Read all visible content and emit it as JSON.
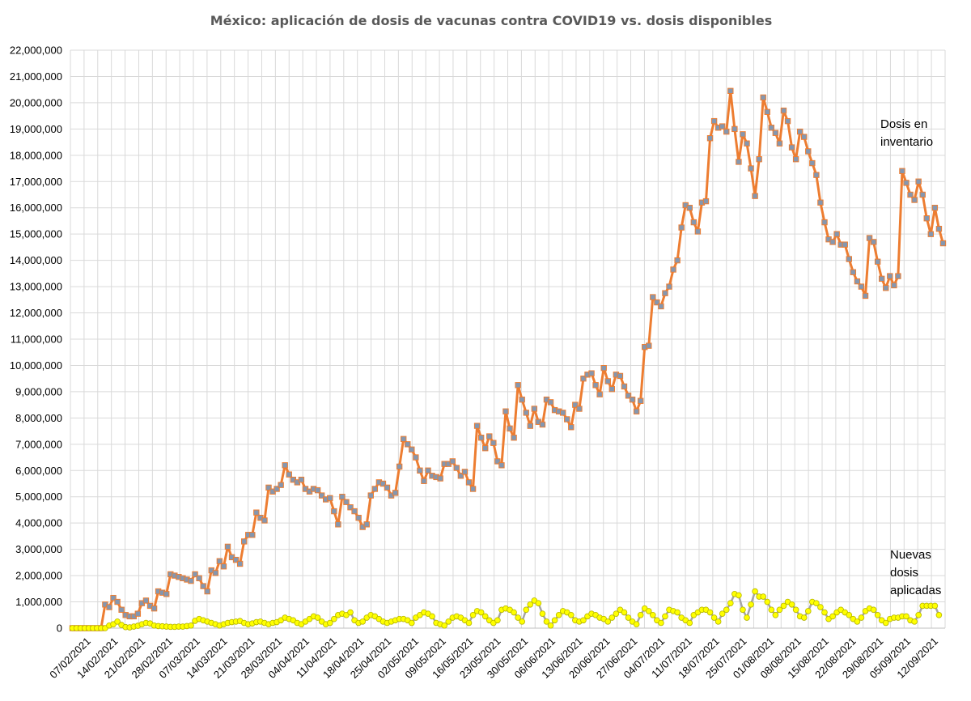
{
  "chart_data": {
    "type": "line",
    "title": "México: aplicación de dosis de vacunas contra COVID19 vs. dosis disponibles",
    "xlabel": "",
    "ylabel": "",
    "ylim": [
      0,
      22000000
    ],
    "y_ticks": [
      "0",
      "1,000,000",
      "2,000,000",
      "3,000,000",
      "4,000,000",
      "5,000,000",
      "6,000,000",
      "7,000,000",
      "8,000,000",
      "9,000,000",
      "10,000,000",
      "11,000,000",
      "12,000,000",
      "13,000,000",
      "14,000,000",
      "15,000,000",
      "16,000,000",
      "17,000,000",
      "18,000,000",
      "19,000,000",
      "20,000,000",
      "21,000,000",
      "22,000,000"
    ],
    "x_ticks": [
      "07/02/2021",
      "14/02/2021",
      "21/02/2021",
      "28/02/2021",
      "07/03/2021",
      "14/03/2021",
      "21/03/2021",
      "28/03/2021",
      "04/04/2021",
      "11/04/2021",
      "18/04/2021",
      "25/04/2021",
      "02/05/2021",
      "09/05/2021",
      "16/05/2021",
      "23/05/2021",
      "30/05/2021",
      "06/06/2021",
      "13/06/2021",
      "20/06/2021",
      "27/06/2021",
      "04/07/2021",
      "11/07/2021",
      "18/07/2021",
      "25/07/2021",
      "01/08/2021",
      "08/08/2021",
      "15/08/2021",
      "22/08/2021",
      "29/08/2021",
      "05/09/2021",
      "12/09/2021"
    ],
    "grid": true,
    "series": [
      {
        "name": "Dosis en inventario",
        "color": "#ED7D31",
        "marker_color": "#8497B0",
        "values": [
          0,
          0,
          0,
          0,
          0,
          0,
          0,
          0,
          900000,
          800000,
          1150000,
          1000000,
          700000,
          500000,
          450000,
          450000,
          550000,
          950000,
          1050000,
          850000,
          750000,
          1400000,
          1350000,
          1300000,
          2050000,
          2000000,
          1950000,
          1900000,
          1850000,
          1800000,
          2050000,
          1900000,
          1600000,
          1400000,
          2200000,
          2100000,
          2550000,
          2350000,
          3100000,
          2700000,
          2600000,
          2450000,
          3300000,
          3550000,
          3550000,
          4400000,
          4200000,
          4100000,
          5350000,
          5200000,
          5300000,
          5450000,
          6200000,
          5850000,
          5650000,
          5550000,
          5650000,
          5300000,
          5200000,
          5300000,
          5250000,
          5050000,
          4900000,
          4950000,
          4450000,
          3950000,
          5000000,
          4800000,
          4600000,
          4450000,
          4200000,
          3850000,
          3950000,
          5050000,
          5300000,
          5550000,
          5500000,
          5350000,
          5050000,
          5150000,
          6150000,
          7200000,
          7000000,
          6800000,
          6500000,
          6000000,
          5600000,
          6000000,
          5800000,
          5750000,
          5700000,
          6250000,
          6250000,
          6350000,
          6100000,
          5800000,
          5950000,
          5550000,
          5300000,
          7700000,
          7250000,
          6850000,
          7300000,
          7050000,
          6350000,
          6200000,
          8250000,
          7600000,
          7250000,
          9250000,
          8700000,
          8200000,
          7700000,
          8350000,
          7850000,
          7750000,
          8700000,
          8600000,
          8300000,
          8250000,
          8200000,
          7950000,
          7650000,
          8500000,
          8350000,
          9500000,
          9650000,
          9700000,
          9250000,
          8900000,
          9900000,
          9400000,
          9100000,
          9650000,
          9600000,
          9200000,
          8850000,
          8700000,
          8250000,
          8650000,
          10700000,
          10750000,
          12600000,
          12400000,
          12250000,
          12750000,
          13000000,
          13650000,
          14000000,
          15250000,
          16100000,
          16000000,
          15450000,
          15100000,
          16200000,
          16250000,
          18650000,
          19300000,
          19050000,
          19100000,
          18900000,
          20450000,
          19000000,
          17750000,
          18800000,
          18450000,
          17500000,
          16450000,
          17850000,
          20200000,
          19650000,
          19050000,
          18850000,
          18450000,
          19700000,
          19300000,
          18300000,
          17850000,
          18900000,
          18700000,
          18150000,
          17700000,
          17250000,
          16200000,
          15450000,
          14800000,
          14700000,
          15000000,
          14600000,
          14600000,
          14050000,
          13550000,
          13200000,
          13000000,
          12650000,
          14850000,
          14700000,
          13950000,
          13300000,
          12950000,
          13400000,
          13050000,
          13400000,
          17400000,
          16950000,
          16500000,
          16300000,
          17000000,
          16500000,
          15600000,
          15000000,
          16000000,
          15200000,
          14650000
        ]
      },
      {
        "name": "Nuevas dosis aplicadas",
        "color": "#A5A5A5",
        "marker_color": "#FFFF00",
        "values": [
          0,
          0,
          0,
          0,
          0,
          0,
          0,
          0,
          0,
          100000,
          150000,
          250000,
          120000,
          40000,
          30000,
          60000,
          90000,
          150000,
          200000,
          180000,
          100000,
          80000,
          70000,
          60000,
          50000,
          50000,
          60000,
          60000,
          80000,
          100000,
          280000,
          350000,
          300000,
          250000,
          200000,
          150000,
          100000,
          150000,
          200000,
          230000,
          250000,
          270000,
          200000,
          150000,
          180000,
          230000,
          250000,
          200000,
          150000,
          200000,
          230000,
          300000,
          400000,
          350000,
          300000,
          200000,
          150000,
          250000,
          350000,
          450000,
          400000,
          250000,
          150000,
          200000,
          350000,
          500000,
          550000,
          500000,
          600000,
          300000,
          200000,
          250000,
          400000,
          500000,
          450000,
          350000,
          250000,
          200000,
          250000,
          300000,
          350000,
          350000,
          300000,
          200000,
          400000,
          500000,
          600000,
          550000,
          450000,
          200000,
          150000,
          100000,
          250000,
          400000,
          450000,
          400000,
          300000,
          200000,
          500000,
          650000,
          600000,
          450000,
          300000,
          200000,
          300000,
          700000,
          750000,
          700000,
          600000,
          400000,
          250000,
          700000,
          900000,
          1050000,
          950000,
          550000,
          250000,
          100000,
          300000,
          500000,
          650000,
          600000,
          500000,
          300000,
          250000,
          300000,
          450000,
          550000,
          500000,
          400000,
          350000,
          250000,
          400000,
          550000,
          700000,
          600000,
          400000,
          250000,
          150000,
          500000,
          750000,
          650000,
          500000,
          300000,
          200000,
          450000,
          700000,
          650000,
          600000,
          400000,
          300000,
          200000,
          500000,
          600000,
          700000,
          700000,
          600000,
          400000,
          250000,
          550000,
          700000,
          950000,
          1300000,
          1250000,
          700000,
          400000,
          900000,
          1400000,
          1200000,
          1200000,
          1000000,
          700000,
          500000,
          700000,
          850000,
          1000000,
          900000,
          700000,
          450000,
          400000,
          650000,
          1000000,
          950000,
          800000,
          600000,
          350000,
          450000,
          600000,
          700000,
          600000,
          500000,
          350000,
          250000,
          400000,
          650000,
          750000,
          700000,
          500000,
          300000,
          200000,
          350000,
          400000,
          400000,
          450000,
          450000,
          300000,
          250000,
          500000,
          850000,
          850000,
          850000,
          850000,
          500000
        ]
      }
    ],
    "annotations": [
      {
        "series": "Dosis en inventario",
        "lines": [
          "Dosis en",
          "inventario"
        ]
      },
      {
        "series": "Nuevas dosis aplicadas",
        "lines": [
          "Nuevas",
          "dosis",
          "aplicadas"
        ]
      }
    ]
  }
}
